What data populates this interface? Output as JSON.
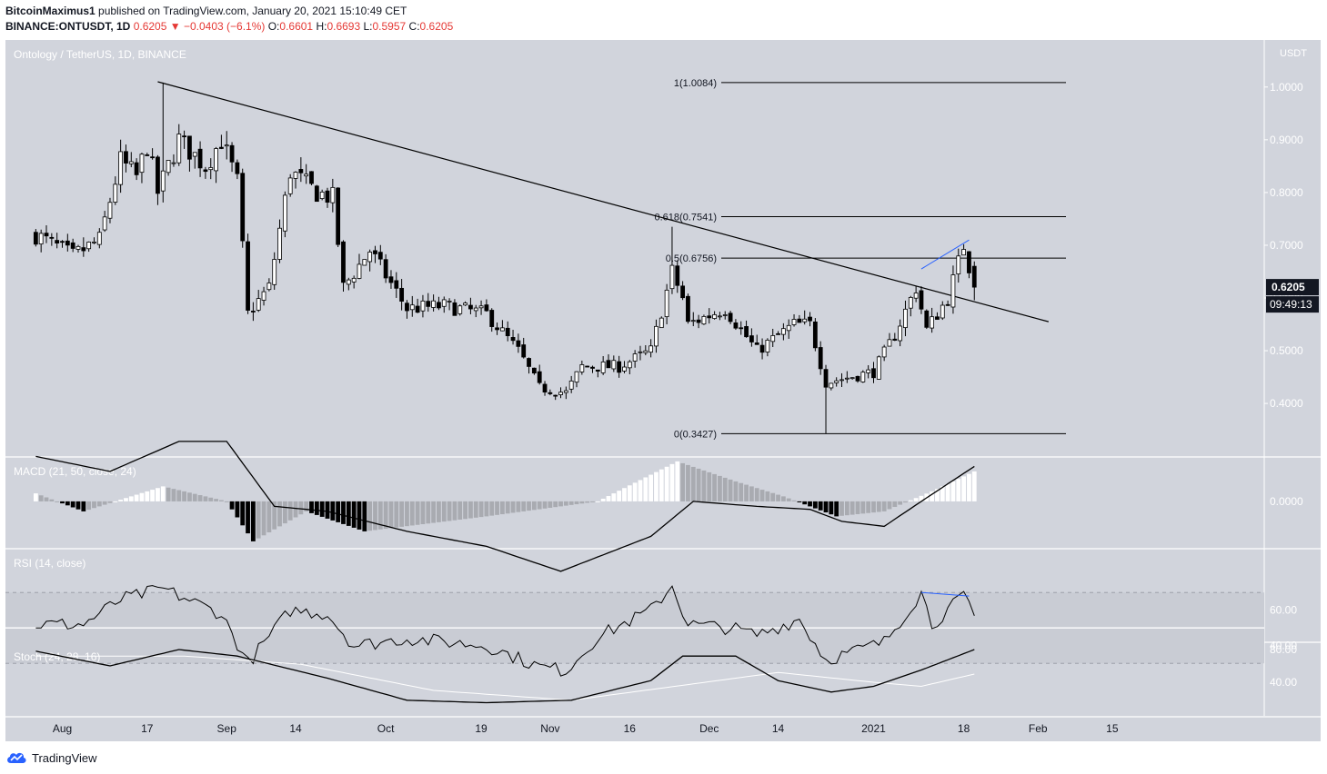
{
  "header": {
    "author": "BitcoinMaximus1",
    "published_text": " published on TradingView.com, January 20, 2021 15:10:49 CET",
    "symbol": "BINANCE:ONTUSDT, 1D",
    "last": "0.6205",
    "change": "−0.0403 (−6.1%)",
    "o_label": "O:",
    "o": "0.6601",
    "h_label": "H:",
    "h": "0.6693",
    "l_label": "L:",
    "l": "0.5957",
    "c_label": "C:",
    "c": "0.6205"
  },
  "footer": {
    "brand": "TradingView"
  },
  "colors": {
    "panel": "#d1d4dc",
    "line": "#000000",
    "blue": "#2962ff",
    "hist_light": "#ffffff",
    "hist_gray": "#a9abb1",
    "hist_dark": "#000000"
  },
  "chart_data": {
    "type": "candlestick",
    "title": "Ontology / TetherUS, 1D, BINANCE",
    "currency": "USDT",
    "price_ticks": [
      "1.0000",
      "0.9000",
      "0.8000",
      "0.7000",
      "0.6000",
      "0.5000",
      "0.4000"
    ],
    "last_price_label": "0.6205",
    "countdown_label": "09:49:13",
    "x_ticks": [
      {
        "label": "Aug",
        "date": "2020-08-01"
      },
      {
        "label": "17",
        "date": "2020-08-17"
      },
      {
        "label": "Sep",
        "date": "2020-09-01"
      },
      {
        "label": "14",
        "date": "2020-09-14"
      },
      {
        "label": "Oct",
        "date": "2020-10-01"
      },
      {
        "label": "19",
        "date": "2020-10-19"
      },
      {
        "label": "Nov",
        "date": "2020-11-01"
      },
      {
        "label": "16",
        "date": "2020-11-16"
      },
      {
        "label": "Dec",
        "date": "2020-12-01"
      },
      {
        "label": "14",
        "date": "2020-12-14"
      },
      {
        "label": "2021",
        "date": "2021-01-01"
      },
      {
        "label": "18",
        "date": "2021-01-18"
      },
      {
        "label": "Feb",
        "date": "2021-02-01"
      },
      {
        "label": "15",
        "date": "2021-02-15"
      }
    ],
    "close_keys": [
      {
        "date": "2020-07-27",
        "close": 0.72
      },
      {
        "date": "2020-08-03",
        "close": 0.68
      },
      {
        "date": "2020-08-08",
        "close": 0.71
      },
      {
        "date": "2020-08-12",
        "close": 0.86
      },
      {
        "date": "2020-08-15",
        "close": 0.83
      },
      {
        "date": "2020-08-17",
        "close": 0.89
      },
      {
        "date": "2020-08-19",
        "close": 0.8
      },
      {
        "date": "2020-08-23",
        "close": 0.9
      },
      {
        "date": "2020-08-28",
        "close": 0.85
      },
      {
        "date": "2020-08-31",
        "close": 0.9
      },
      {
        "date": "2020-09-03",
        "close": 0.82
      },
      {
        "date": "2020-09-05",
        "close": 0.57
      },
      {
        "date": "2020-09-09",
        "close": 0.62
      },
      {
        "date": "2020-09-13",
        "close": 0.84
      },
      {
        "date": "2020-09-18",
        "close": 0.8
      },
      {
        "date": "2020-09-21",
        "close": 0.79
      },
      {
        "date": "2020-09-23",
        "close": 0.62
      },
      {
        "date": "2020-09-28",
        "close": 0.69
      },
      {
        "date": "2020-10-05",
        "close": 0.58
      },
      {
        "date": "2020-10-12",
        "close": 0.585
      },
      {
        "date": "2020-10-20",
        "close": 0.57
      },
      {
        "date": "2020-10-26",
        "close": 0.5
      },
      {
        "date": "2020-10-30",
        "close": 0.43
      },
      {
        "date": "2020-11-04",
        "close": 0.42
      },
      {
        "date": "2020-11-07",
        "close": 0.47
      },
      {
        "date": "2020-11-14",
        "close": 0.47
      },
      {
        "date": "2020-11-20",
        "close": 0.5
      },
      {
        "date": "2020-11-24",
        "close": 0.65
      },
      {
        "date": "2020-11-26",
        "close": 0.6
      },
      {
        "date": "2020-11-27",
        "close": 0.55
      },
      {
        "date": "2020-12-04",
        "close": 0.58
      },
      {
        "date": "2020-12-10",
        "close": 0.5
      },
      {
        "date": "2020-12-17",
        "close": 0.55
      },
      {
        "date": "2020-12-20",
        "close": 0.55
      },
      {
        "date": "2020-12-23",
        "close": 0.44
      },
      {
        "date": "2021-01-01",
        "close": 0.46
      },
      {
        "date": "2021-01-05",
        "close": 0.53
      },
      {
        "date": "2021-01-09",
        "close": 0.62
      },
      {
        "date": "2021-01-11",
        "close": 0.54
      },
      {
        "date": "2021-01-15",
        "close": 0.6
      },
      {
        "date": "2021-01-18",
        "close": 0.7
      },
      {
        "date": "2021-01-19",
        "close": 0.66
      },
      {
        "date": "2021-01-20",
        "close": 0.6205
      }
    ],
    "marked_bars": [
      {
        "date": "2020-08-20",
        "high": 1.0084
      },
      {
        "date": "2020-11-24",
        "high": 0.735
      },
      {
        "date": "2020-12-23",
        "low": 0.3427
      },
      {
        "date": "2021-01-20",
        "open": 0.6601,
        "high": 0.6693,
        "low": 0.5957,
        "close": 0.6205
      }
    ],
    "fib_levels": [
      {
        "label": "1(1.0084)",
        "value": 1.0084
      },
      {
        "label": "0.618(0.7541)",
        "value": 0.7541
      },
      {
        "label": "0.5(0.6756)",
        "value": 0.6756
      },
      {
        "label": "0(0.3427)",
        "value": 0.3427
      }
    ],
    "trendline": {
      "from": {
        "date": "2020-08-19",
        "price": 1.01
      },
      "to": {
        "date": "2021-02-03",
        "price": 0.555
      }
    },
    "macd": {
      "label": "MACD (21, 50, close, 24)",
      "ticks": [
        "0.0000"
      ],
      "line_keys": [
        {
          "date": "2020-07-27",
          "value": 0.045
        },
        {
          "date": "2020-08-10",
          "value": 0.03
        },
        {
          "date": "2020-08-23",
          "value": 0.06
        },
        {
          "date": "2020-09-01",
          "value": 0.06
        },
        {
          "date": "2020-09-10",
          "value": -0.005
        },
        {
          "date": "2020-09-20",
          "value": -0.01
        },
        {
          "date": "2020-10-05",
          "value": -0.03
        },
        {
          "date": "2020-10-20",
          "value": -0.045
        },
        {
          "date": "2020-11-03",
          "value": -0.07
        },
        {
          "date": "2020-11-20",
          "value": -0.035
        },
        {
          "date": "2020-11-28",
          "value": 0.0
        },
        {
          "date": "2020-12-10",
          "value": -0.005
        },
        {
          "date": "2020-12-20",
          "value": -0.008
        },
        {
          "date": "2020-12-26",
          "value": -0.02
        },
        {
          "date": "2021-01-03",
          "value": -0.025
        },
        {
          "date": "2021-01-10",
          "value": 0.0
        },
        {
          "date": "2021-01-20",
          "value": 0.035
        }
      ],
      "hist_keys": [
        {
          "date": "2020-07-27",
          "value": 0.008
        },
        {
          "date": "2020-08-05",
          "value": -0.01
        },
        {
          "date": "2020-08-20",
          "value": 0.015
        },
        {
          "date": "2020-09-01",
          "value": 0.0
        },
        {
          "date": "2020-09-06",
          "value": -0.04
        },
        {
          "date": "2020-09-16",
          "value": -0.01
        },
        {
          "date": "2020-09-27",
          "value": -0.03
        },
        {
          "date": "2020-10-20",
          "value": -0.015
        },
        {
          "date": "2020-11-10",
          "value": 0.0
        },
        {
          "date": "2020-11-25",
          "value": 0.04
        },
        {
          "date": "2020-12-06",
          "value": 0.02
        },
        {
          "date": "2020-12-15",
          "value": 0.005
        },
        {
          "date": "2020-12-25",
          "value": -0.015
        },
        {
          "date": "2021-01-03",
          "value": -0.01
        },
        {
          "date": "2021-01-12",
          "value": 0.01
        },
        {
          "date": "2021-01-20",
          "value": 0.03
        }
      ]
    },
    "rsi": {
      "label": "RSI (14, close)",
      "ticks": [
        "60.00",
        "40.00"
      ],
      "bands": [
        70,
        50,
        30
      ],
      "keys": [
        {
          "date": "2020-07-27",
          "value": 52
        },
        {
          "date": "2020-08-05",
          "value": 52
        },
        {
          "date": "2020-08-12",
          "value": 66
        },
        {
          "date": "2020-08-20",
          "value": 72
        },
        {
          "date": "2020-08-31",
          "value": 58
        },
        {
          "date": "2020-09-05",
          "value": 30
        },
        {
          "date": "2020-09-13",
          "value": 60
        },
        {
          "date": "2020-09-20",
          "value": 58
        },
        {
          "date": "2020-09-25",
          "value": 40
        },
        {
          "date": "2020-10-05",
          "value": 44
        },
        {
          "date": "2020-10-20",
          "value": 40
        },
        {
          "date": "2020-10-30",
          "value": 28
        },
        {
          "date": "2020-11-04",
          "value": 26
        },
        {
          "date": "2020-11-10",
          "value": 45
        },
        {
          "date": "2020-11-20",
          "value": 60
        },
        {
          "date": "2020-11-24",
          "value": 74
        },
        {
          "date": "2020-11-27",
          "value": 52
        },
        {
          "date": "2020-12-05",
          "value": 50
        },
        {
          "date": "2020-12-10",
          "value": 46
        },
        {
          "date": "2020-12-18",
          "value": 55
        },
        {
          "date": "2020-12-23",
          "value": 32
        },
        {
          "date": "2021-01-03",
          "value": 42
        },
        {
          "date": "2021-01-10",
          "value": 70
        },
        {
          "date": "2021-01-12",
          "value": 52
        },
        {
          "date": "2021-01-18",
          "value": 68
        },
        {
          "date": "2021-01-20",
          "value": 55
        }
      ],
      "divergence": {
        "from": {
          "date": "2021-01-10",
          "value": 70
        },
        "to": {
          "date": "2021-01-19",
          "value": 68
        }
      }
    },
    "stoch": {
      "label": "Stoch (24, 28, 16)",
      "ticks": [
        "80.00",
        "40.00"
      ],
      "k_keys": [
        {
          "date": "2020-07-27",
          "value": 78
        },
        {
          "date": "2020-08-10",
          "value": 60
        },
        {
          "date": "2020-08-23",
          "value": 80
        },
        {
          "date": "2020-09-03",
          "value": 72
        },
        {
          "date": "2020-09-20",
          "value": 45
        },
        {
          "date": "2020-10-05",
          "value": 18
        },
        {
          "date": "2020-10-20",
          "value": 15
        },
        {
          "date": "2020-11-05",
          "value": 18
        },
        {
          "date": "2020-11-20",
          "value": 42
        },
        {
          "date": "2020-11-26",
          "value": 72
        },
        {
          "date": "2020-12-06",
          "value": 72
        },
        {
          "date": "2020-12-14",
          "value": 42
        },
        {
          "date": "2020-12-24",
          "value": 28
        },
        {
          "date": "2021-01-01",
          "value": 35
        },
        {
          "date": "2021-01-10",
          "value": 55
        },
        {
          "date": "2021-01-20",
          "value": 80
        }
      ],
      "d_keys": [
        {
          "date": "2020-07-27",
          "value": 72
        },
        {
          "date": "2020-08-24",
          "value": 72
        },
        {
          "date": "2020-09-15",
          "value": 62
        },
        {
          "date": "2020-10-10",
          "value": 30
        },
        {
          "date": "2020-11-05",
          "value": 18
        },
        {
          "date": "2020-11-28",
          "value": 38
        },
        {
          "date": "2020-12-14",
          "value": 52
        },
        {
          "date": "2021-01-01",
          "value": 40
        },
        {
          "date": "2021-01-10",
          "value": 35
        },
        {
          "date": "2021-01-20",
          "value": 50
        }
      ]
    }
  }
}
